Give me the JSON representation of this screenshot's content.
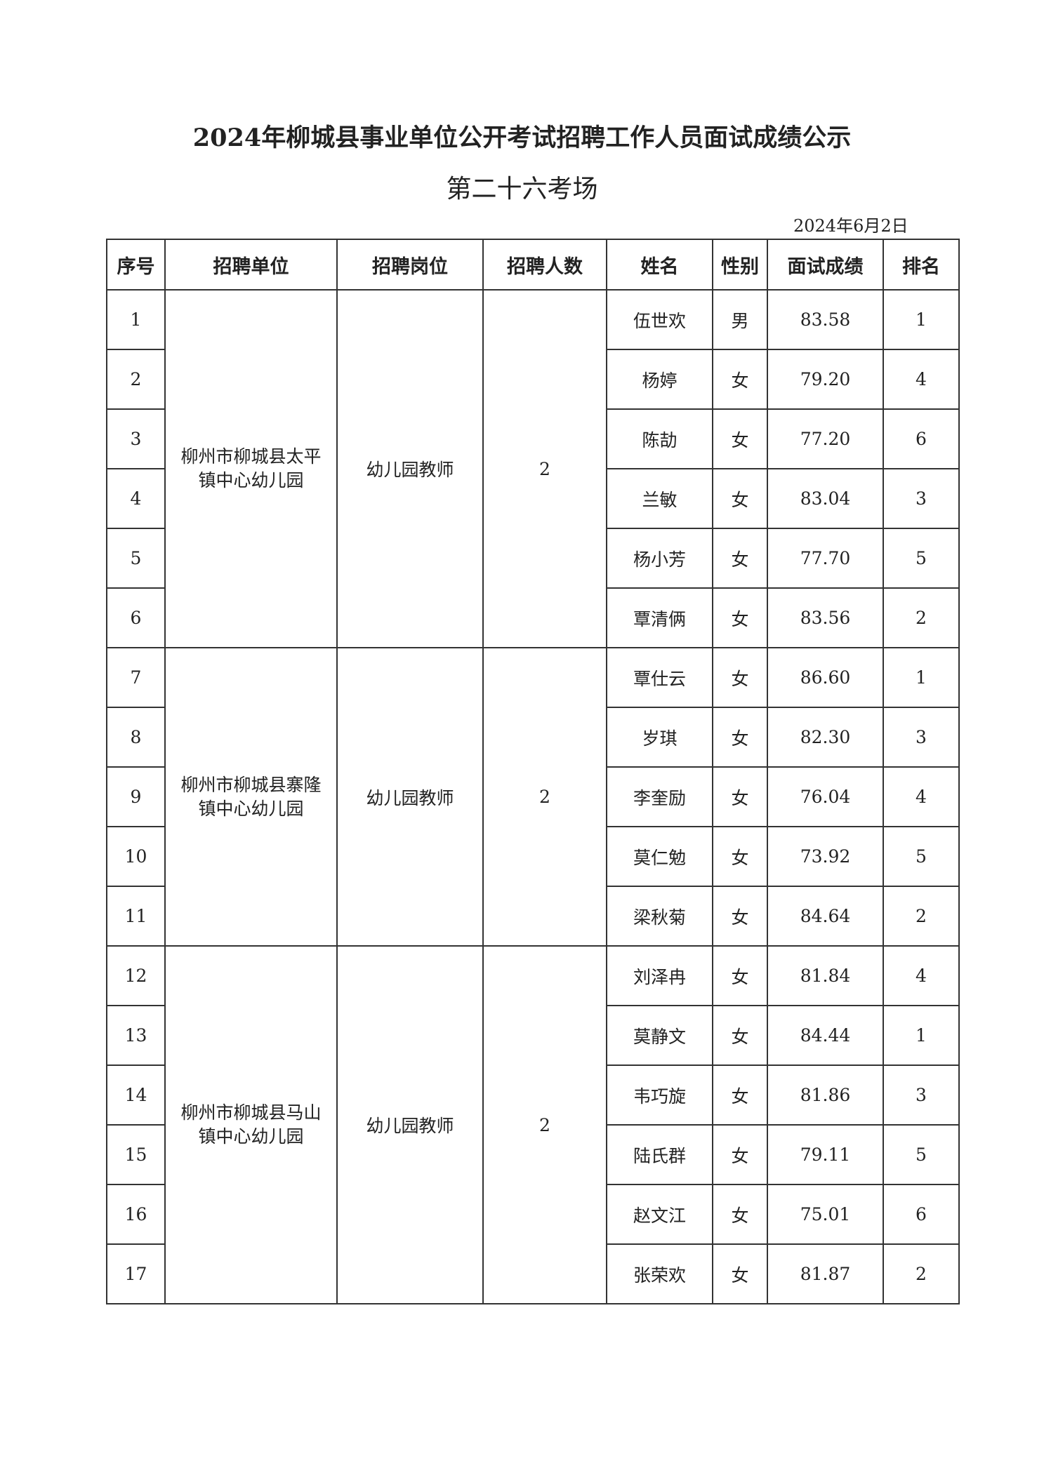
{
  "title": "2024年柳城县事业单位公开考试招聘工作人员面试成绩公示",
  "subtitle": "第二十六考场",
  "date": "2024年6月2日",
  "table": {
    "headers": [
      "序号",
      "招聘单位",
      "招聘岗位",
      "招聘人数",
      "姓名",
      "性别",
      "面试成绩",
      "排名"
    ],
    "groups": [
      {
        "unit": "柳州市柳城县太平镇中心幼儿园",
        "position": "幼儿园教师",
        "count": "2",
        "rows": [
          {
            "no": "1",
            "name": "伍世欢",
            "gender": "男",
            "score": "83.58",
            "rank": "1"
          },
          {
            "no": "2",
            "name": "杨婷",
            "gender": "女",
            "score": "79.20",
            "rank": "4"
          },
          {
            "no": "3",
            "name": "陈劼",
            "gender": "女",
            "score": "77.20",
            "rank": "6"
          },
          {
            "no": "4",
            "name": "兰敏",
            "gender": "女",
            "score": "83.04",
            "rank": "3"
          },
          {
            "no": "5",
            "name": "杨小芳",
            "gender": "女",
            "score": "77.70",
            "rank": "5"
          },
          {
            "no": "6",
            "name": "覃清俩",
            "gender": "女",
            "score": "83.56",
            "rank": "2"
          }
        ]
      },
      {
        "unit": "柳州市柳城县寨隆镇中心幼儿园",
        "position": "幼儿园教师",
        "count": "2",
        "rows": [
          {
            "no": "7",
            "name": "覃仕云",
            "gender": "女",
            "score": "86.60",
            "rank": "1"
          },
          {
            "no": "8",
            "name": "岁琪",
            "gender": "女",
            "score": "82.30",
            "rank": "3"
          },
          {
            "no": "9",
            "name": "李奎励",
            "gender": "女",
            "score": "76.04",
            "rank": "4"
          },
          {
            "no": "10",
            "name": "莫仁勉",
            "gender": "女",
            "score": "73.92",
            "rank": "5"
          },
          {
            "no": "11",
            "name": "梁秋菊",
            "gender": "女",
            "score": "84.64",
            "rank": "2"
          }
        ]
      },
      {
        "unit": "柳州市柳城县马山镇中心幼儿园",
        "position": "幼儿园教师",
        "count": "2",
        "rows": [
          {
            "no": "12",
            "name": "刘泽冉",
            "gender": "女",
            "score": "81.84",
            "rank": "4"
          },
          {
            "no": "13",
            "name": "莫静文",
            "gender": "女",
            "score": "84.44",
            "rank": "1"
          },
          {
            "no": "14",
            "name": "韦巧旋",
            "gender": "女",
            "score": "81.86",
            "rank": "3"
          },
          {
            "no": "15",
            "name": "陆氏群",
            "gender": "女",
            "score": "79.11",
            "rank": "5"
          },
          {
            "no": "16",
            "name": "赵文江",
            "gender": "女",
            "score": "75.01",
            "rank": "6"
          },
          {
            "no": "17",
            "name": "张荣欢",
            "gender": "女",
            "score": "81.87",
            "rank": "2"
          }
        ]
      }
    ]
  }
}
